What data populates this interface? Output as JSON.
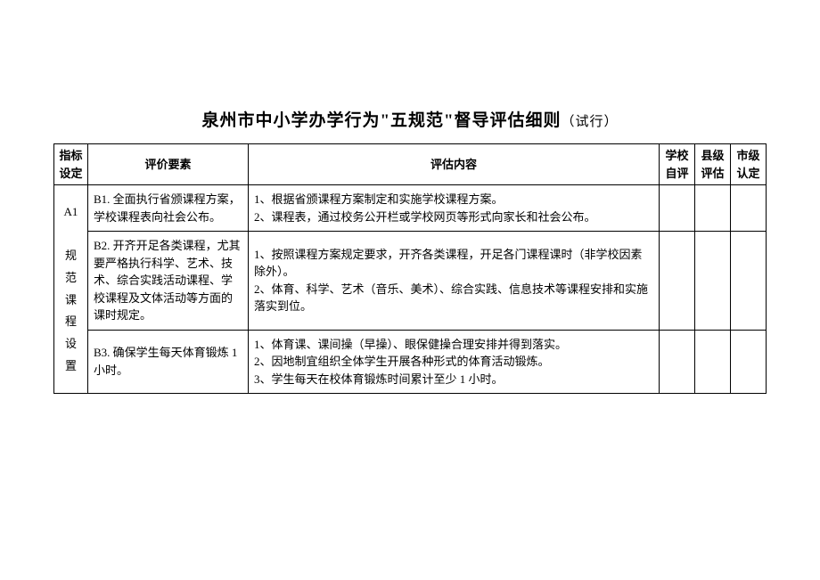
{
  "title_main": "泉州市中小学办学行为\"五规范\"督导评估细则",
  "title_suffix": "（试行）",
  "headers": {
    "indicator": "指标\n设定",
    "element": "评价要素",
    "content": "评估内容",
    "school": "学校\n自评",
    "county": "县级\n评估",
    "city": "市级\n认定"
  },
  "indicator": {
    "code": "A1",
    "label": "规\n范\n课\n程\n设\n置"
  },
  "rows": [
    {
      "element": "B1. 全面执行省颁课程方案，学校课程表向社会公布。",
      "content": "1、根据省颁课程方案制定和实施学校课程方案。\n2、课程表，通过校务公开栏或学校网页等形式向家长和社会公布。"
    },
    {
      "element": "B2. 开齐开足各类课程，尤其要严格执行科学、艺术、技术、综合实践活动课程、学校课程及文体活动等方面的课时规定。",
      "content": "1、按照课程方案规定要求，开齐各类课程，开足各门课程课时（非学校因素除外）。\n2、体育、科学、艺术（音乐、美术）、综合实践、信息技术等课程安排和实施落实到位。"
    },
    {
      "element": "B3. 确保学生每天体育锻炼 1 小时。",
      "content": "1、体育课、课间操（早操）、眼保健操合理安排并得到落实。\n2、因地制宜组织全体学生开展各种形式的体育活动锻炼。\n3、学生每天在校体育锻炼时间累计至少 1 小时。"
    }
  ],
  "styling": {
    "background_color": "#ffffff",
    "border_color": "#000000",
    "text_color": "#000000",
    "title_fontsize": 19,
    "title_suffix_fontsize": 15,
    "body_fontsize": 13,
    "font_family": "SimSun"
  }
}
